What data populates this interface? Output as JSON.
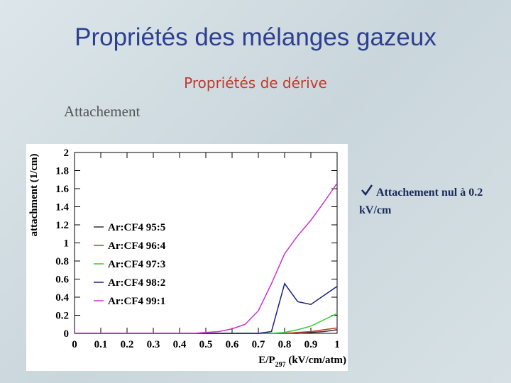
{
  "title": "Propriétés des mélanges gazeux",
  "subtitle": "Propriétés de dérive",
  "section": "Attachement",
  "note": "Attachement nul à 0.2 kV/cm",
  "chart_data": {
    "type": "line",
    "ylabel": "attachment (1/cm)",
    "xlabel": {
      "main": "E/P",
      "sub": "297",
      "unit": " (kV/cm/atm)"
    },
    "x": [
      0,
      0.05,
      0.1,
      0.15,
      0.2,
      0.25,
      0.3,
      0.35,
      0.4,
      0.45,
      0.5,
      0.55,
      0.6,
      0.65,
      0.7,
      0.75,
      0.8,
      0.85,
      0.9,
      0.95,
      1
    ],
    "xlim": [
      0,
      1
    ],
    "xticks": [
      0,
      0.1,
      0.2,
      0.3,
      0.4,
      0.5,
      0.6,
      0.7,
      0.8,
      0.9,
      1
    ],
    "ylim": [
      0,
      2
    ],
    "yticks": [
      0,
      0.2,
      0.4,
      0.6,
      0.8,
      1,
      1.2,
      1.4,
      1.6,
      1.8,
      2
    ],
    "series": [
      {
        "name": "Ar:CF4 95:5",
        "color": "#333333",
        "values": [
          0,
          0,
          0,
          0,
          0,
          0,
          0,
          0,
          0,
          0,
          0,
          0,
          0,
          0,
          0,
          0,
          0,
          0,
          0.01,
          0.02,
          0.04
        ]
      },
      {
        "name": "Ar:CF4 96:4",
        "color": "#c0392b",
        "values": [
          0,
          0,
          0,
          0,
          0,
          0,
          0,
          0,
          0,
          0,
          0,
          0,
          0,
          0,
          0,
          0,
          0,
          0.01,
          0.02,
          0.04,
          0.06
        ]
      },
      {
        "name": "Ar:CF4 97:3",
        "color": "#33cc33",
        "values": [
          0,
          0,
          0,
          0,
          0,
          0,
          0,
          0,
          0,
          0,
          0,
          0,
          0,
          0,
          0,
          0,
          0.01,
          0.04,
          0.08,
          0.15,
          0.22
        ]
      },
      {
        "name": "Ar:CF4 98:2",
        "color": "#1a237e",
        "values": [
          0,
          0,
          0,
          0,
          0,
          0,
          0,
          0,
          0,
          0,
          0,
          0,
          0,
          0,
          0,
          0.02,
          0.55,
          0.35,
          0.32,
          0.42,
          0.52
        ]
      },
      {
        "name": "Ar:CF4 99:1",
        "color": "#cc33cc",
        "values": [
          0,
          0,
          0,
          0,
          0,
          0,
          0,
          0,
          0,
          0,
          0.01,
          0.02,
          0.05,
          0.1,
          0.25,
          0.55,
          0.88,
          1.08,
          1.25,
          1.45,
          1.66
        ]
      }
    ]
  }
}
